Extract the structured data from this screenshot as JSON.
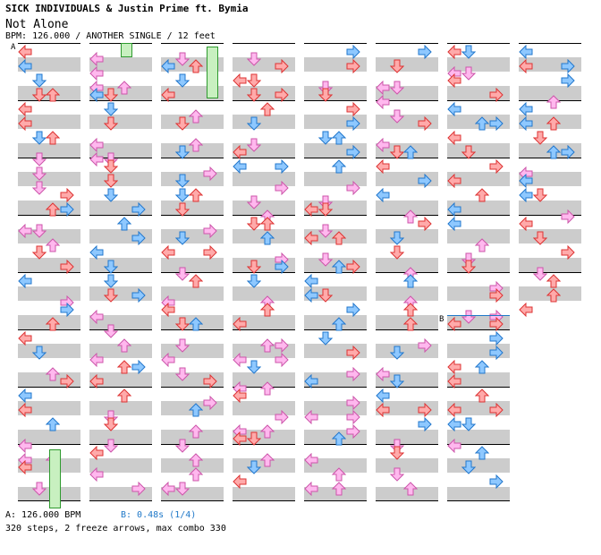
{
  "header": {
    "artist_line": "SICK INDIVIDUALS & Justin Prime ft. Bymia",
    "song_title": "Not Alone",
    "info_line": "BPM: 126.000 / ANOTHER SINGLE / 12 feet"
  },
  "markers": {
    "a": "A",
    "b": "B"
  },
  "footer": {
    "bpm_a": "A: 126.000 BPM",
    "bpm_b": "B: 0.48s (1/4)",
    "stats": "320 steps, 2 freeze arrows, max combo 330"
  },
  "colors": {
    "red": "#ffaaaa",
    "red_border": "#dd3333",
    "blue": "#8ec8ff",
    "blue_border": "#2277cc",
    "pink": "#ffb8ee",
    "pink_border": "#cc55aa",
    "freeze": "#c8f0c0",
    "freeze_border": "#2e9a2e",
    "stripe": "#cccccc",
    "b_line": "#1f78c8"
  }
}
